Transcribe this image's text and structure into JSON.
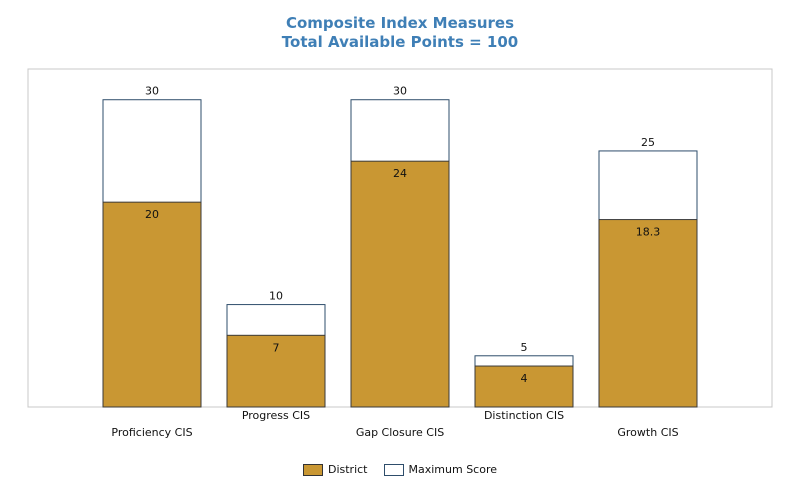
{
  "chart_data": {
    "type": "bar",
    "title": "Composite Index Measures",
    "subtitle": "Total Available Points = 100",
    "categories": [
      "Proficiency CIS",
      "Progress CIS",
      "Gap Closure CIS",
      "Distinction CIS",
      "Growth CIS"
    ],
    "series": [
      {
        "name": "District",
        "values": [
          20,
          7,
          24,
          4,
          18.3
        ],
        "labels": [
          "20",
          "7",
          "24",
          "4",
          "18.3"
        ],
        "color": "#c99733"
      },
      {
        "name": "Maximum Score",
        "values": [
          30,
          10,
          30,
          5,
          25
        ],
        "labels": [
          "30",
          "10",
          "30",
          "5",
          "25"
        ],
        "color": "#ffffff"
      }
    ],
    "ylim": [
      0,
      33
    ],
    "grid": false,
    "legend_position": "bottom"
  }
}
